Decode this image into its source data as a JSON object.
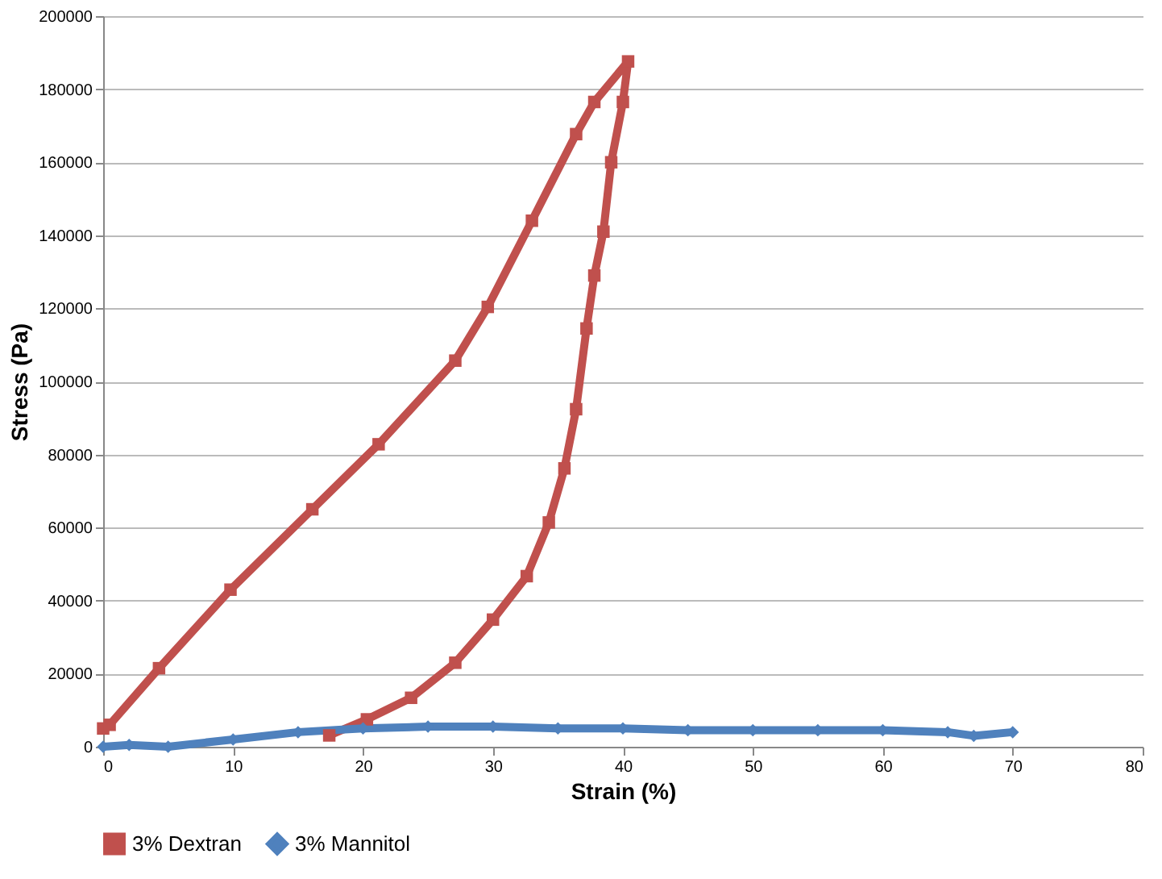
{
  "chart_data": {
    "type": "line",
    "xlabel": "Strain (%)",
    "ylabel": "Stress (Pa)",
    "xlim": [
      0,
      80
    ],
    "xticks": [
      0,
      10,
      20,
      30,
      40,
      50,
      60,
      70,
      80
    ],
    "ylim": [
      0,
      200000
    ],
    "yticks": [
      0,
      20000,
      40000,
      60000,
      80000,
      100000,
      120000,
      140000,
      160000,
      180000,
      200000
    ],
    "grid": "y",
    "legend": "bottom left",
    "series": [
      {
        "name": "3% Dextran",
        "color": "#c0504d",
        "marker": "square",
        "x": [
          0,
          0.5,
          4.3,
          9.8,
          16.1,
          21.2,
          27.1,
          29.6,
          33.0,
          36.4,
          37.8,
          40.4,
          40.0,
          39.1,
          38.5,
          37.8,
          37.2,
          36.4,
          35.5,
          34.3,
          32.6,
          30.0,
          27.1,
          23.7,
          20.3,
          17.4
        ],
        "values": [
          5000,
          6000,
          21500,
          43000,
          65000,
          82800,
          105700,
          120400,
          144000,
          167700,
          176500,
          187600,
          176500,
          160000,
          141000,
          129000,
          114500,
          92400,
          76200,
          61400,
          46700,
          34800,
          23000,
          13400,
          7500,
          3100
        ]
      },
      {
        "name": "3% Mannitol",
        "color": "#4f81bd",
        "marker": "diamond",
        "x": [
          0,
          2,
          5,
          10,
          15,
          20,
          25,
          30,
          35,
          40,
          45,
          50,
          55,
          60,
          65,
          67,
          70
        ],
        "values": [
          0,
          500,
          0,
          2000,
          4000,
          5000,
          5500,
          5500,
          5000,
          5000,
          4500,
          4500,
          4500,
          4500,
          4000,
          3000,
          4000
        ]
      }
    ]
  }
}
